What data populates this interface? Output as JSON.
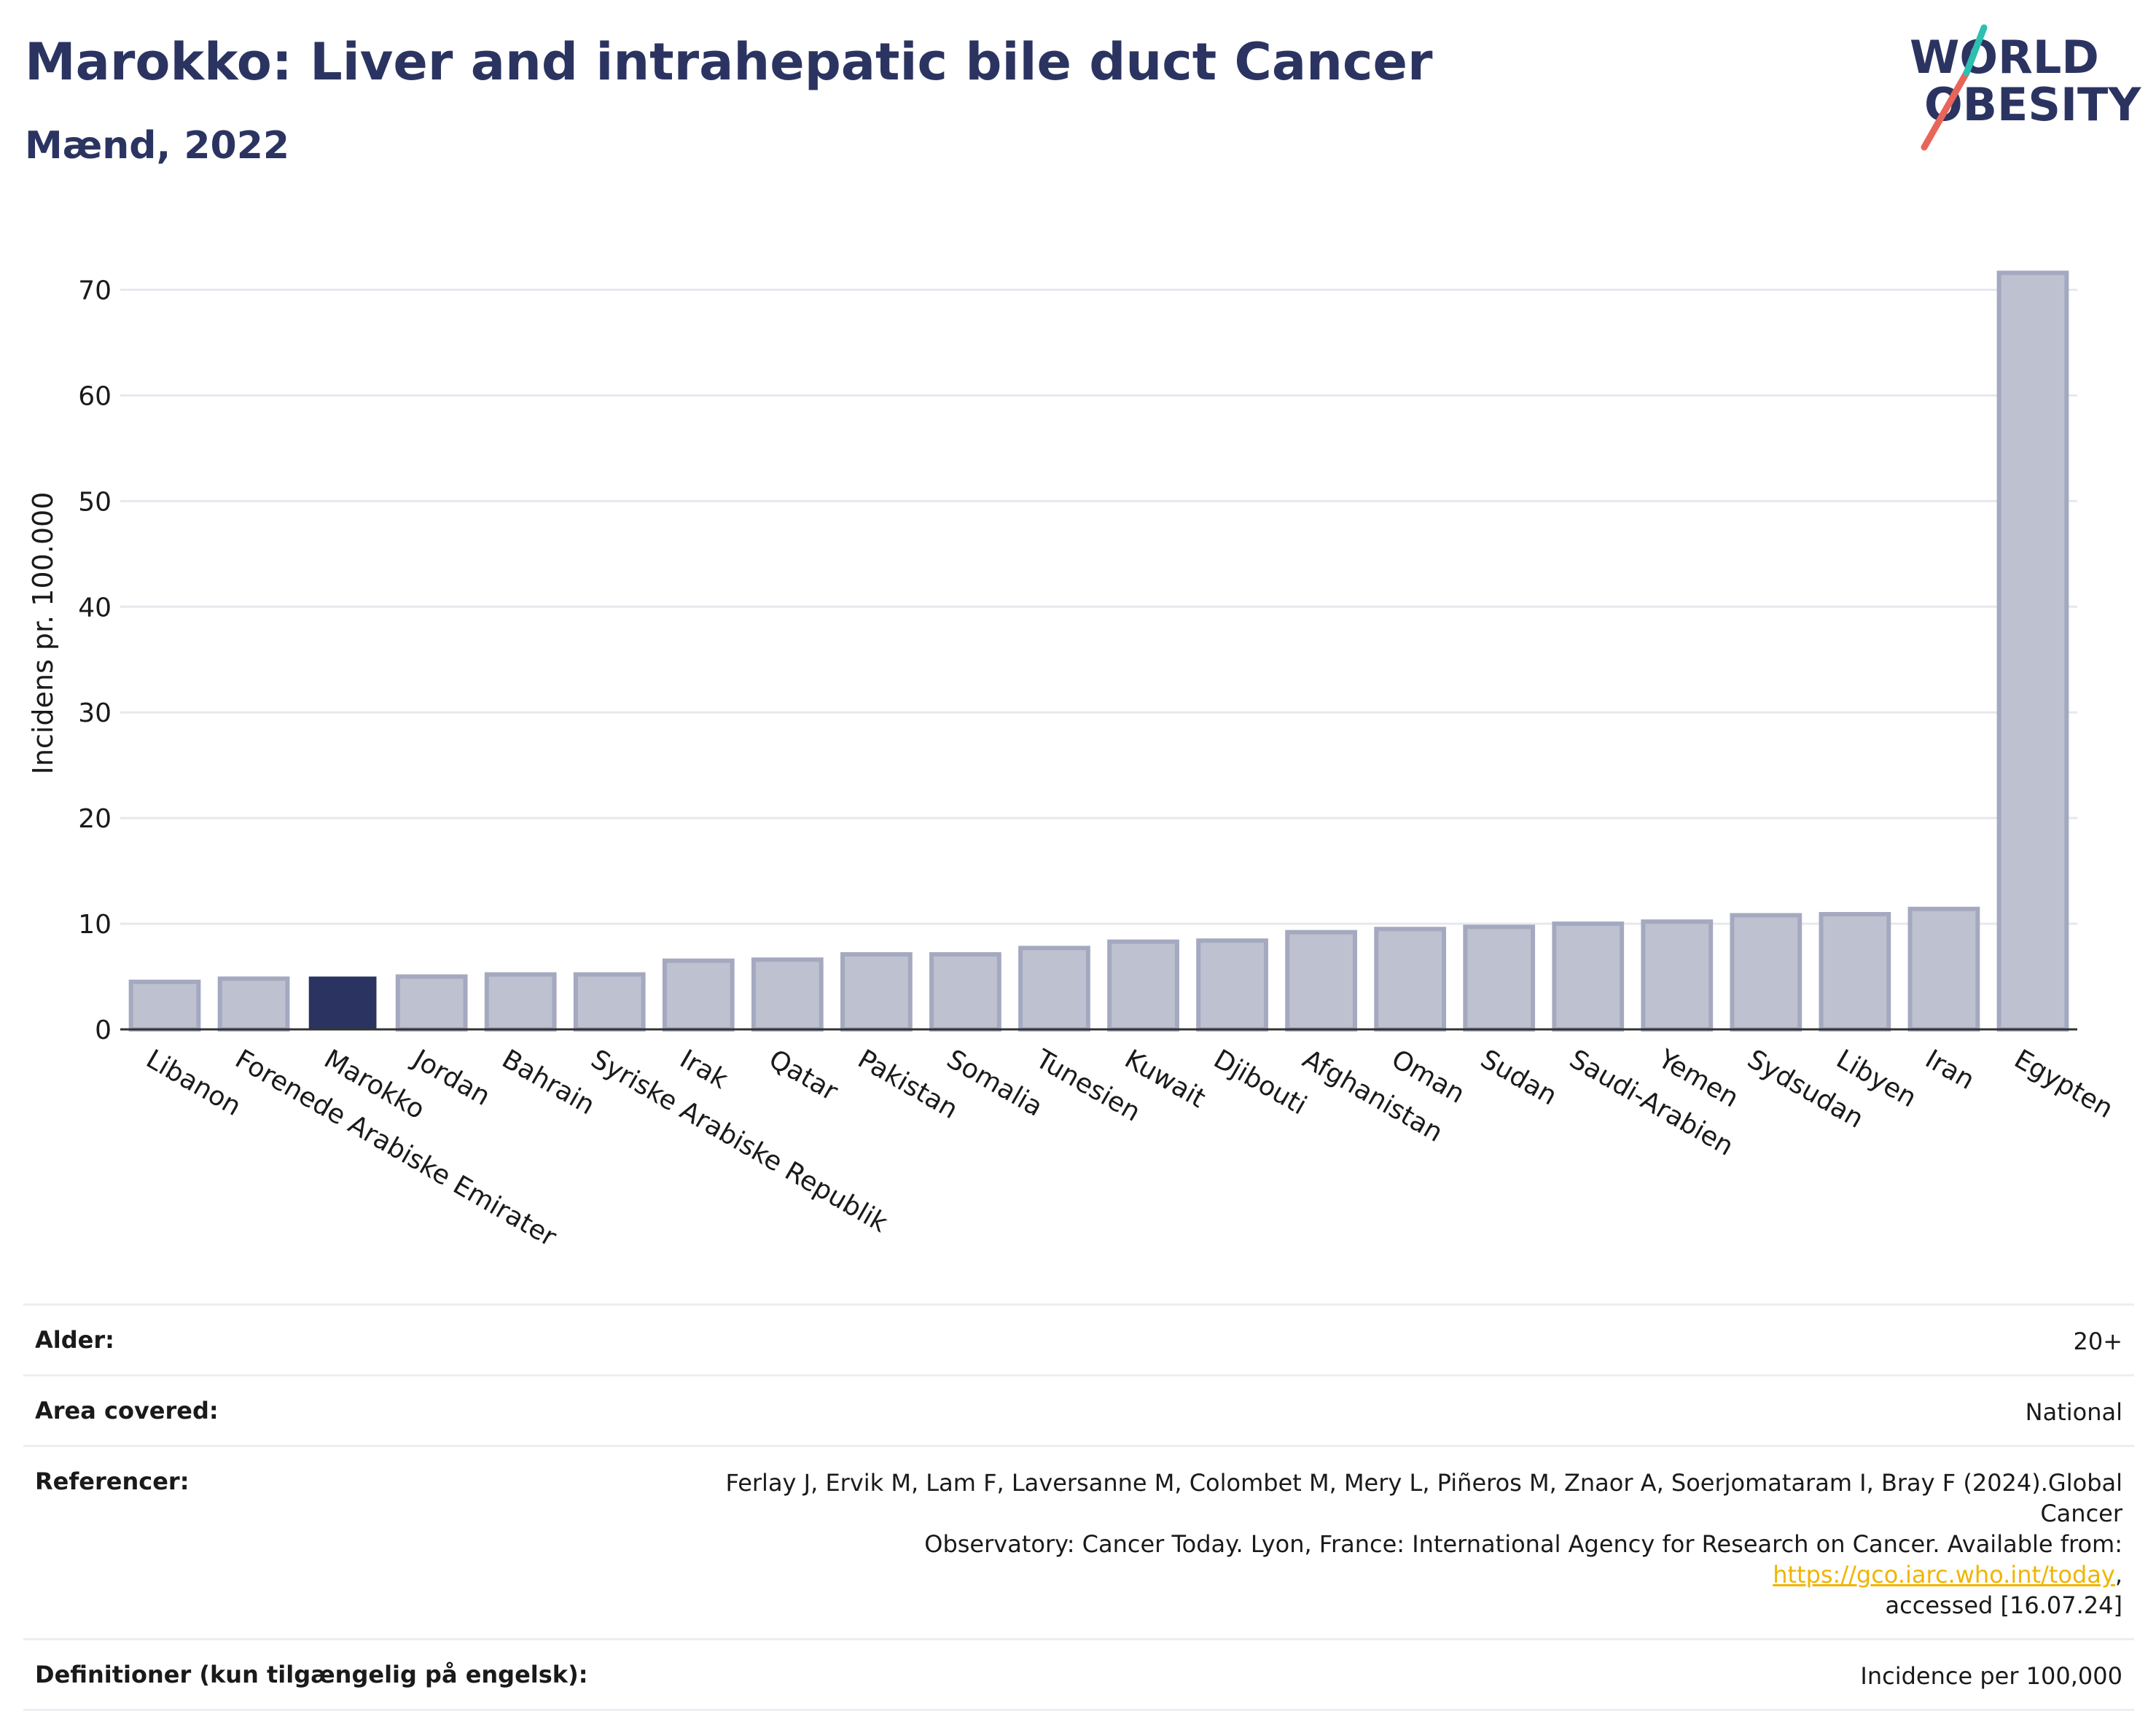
{
  "header": {
    "title": "Marokko: Liver and intrahepatic bile duct Cancer",
    "subtitle": "Mænd, 2022"
  },
  "logo": {
    "line1": "WORLD",
    "line2": "OBESITY",
    "text_color": "#2b3461",
    "slash_colors": [
      "#e8655a",
      "#2dbfb0"
    ]
  },
  "colors": {
    "highlight_bar": "#2b3461",
    "other_bar_fill": "#bec1cf",
    "other_bar_stroke": "#a4a9c0",
    "grid": "#e6e8ee"
  },
  "chart_data": {
    "type": "bar",
    "title": "Marokko: Liver and intrahepatic bile duct Cancer",
    "subtitle": "Mænd, 2022",
    "ylabel": "Incidens pr. 100.000",
    "xlabel": "",
    "ylim": [
      0,
      75
    ],
    "yticks": [
      0,
      10,
      20,
      30,
      40,
      50,
      60,
      70
    ],
    "grid": true,
    "highlight": "Marokko",
    "categories": [
      "Libanon",
      "Forenede Arabiske Emirater",
      "Marokko",
      "Jordan",
      "Bahrain",
      "Syriske Arabiske Republik",
      "Irak",
      "Qatar",
      "Pakistan",
      "Somalia",
      "Tunesien",
      "Kuwait",
      "Djibouti",
      "Afghanistan",
      "Oman",
      "Sudan",
      "Saudi-Arabien",
      "Yemen",
      "Sydsudan",
      "Libyen",
      "Iran",
      "Egypten"
    ],
    "values": [
      4.5,
      4.8,
      5.0,
      5.0,
      5.2,
      5.2,
      6.5,
      6.6,
      7.1,
      7.1,
      7.7,
      8.3,
      8.4,
      9.2,
      9.5,
      9.7,
      10.0,
      10.2,
      10.8,
      10.9,
      11.4,
      71.6
    ]
  },
  "info": {
    "rows": [
      {
        "label": "Alder:",
        "value": "20+"
      },
      {
        "label": "Area covered:",
        "value": "National"
      },
      {
        "label": "Referencer:",
        "value_line1": "Ferlay J, Ervik M, Lam F, Laversanne M, Colombet M, Mery L, Piñeros M, Znaor A, Soerjomataram I, Bray F (2024).Global Cancer",
        "value_line2_pre": "Observatory: Cancer Today. Lyon, France: International Agency for Research on Cancer. Available from: ",
        "link": "https://gco.iarc.who.int/today",
        "value_line2_post": ",",
        "value_line3": "accessed [16.07.24]"
      },
      {
        "label": "Definitioner (kun tilgængelig på engelsk):",
        "value": "Incidence per 100,000"
      }
    ]
  }
}
